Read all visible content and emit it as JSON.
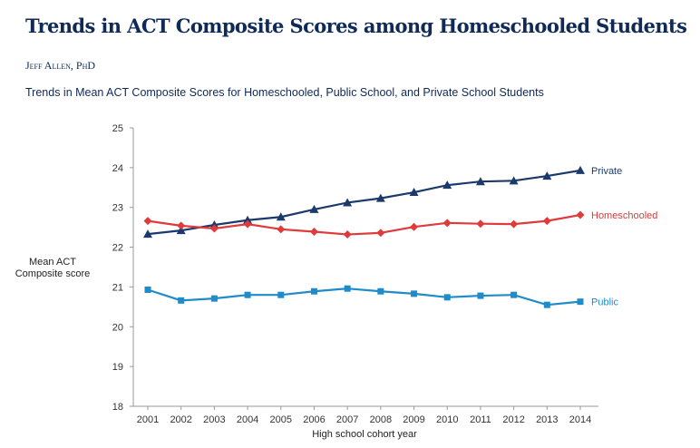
{
  "header": {
    "title": "Trends in ACT Composite Scores among  Homeschooled Students",
    "author": "Jeff Allen, PhD",
    "subtitle": "Trends in Mean ACT Composite Scores for Homeschooled, Public School, and Private School Students"
  },
  "chart_data": {
    "type": "line",
    "title": "Trends in Mean ACT Composite Scores for Homeschooled, Public School, and Private School Students",
    "xlabel": "High school cohort year",
    "ylabel_lines": [
      "Mean ACT",
      "Composite score"
    ],
    "ylim": [
      18,
      25
    ],
    "yticks": [
      "18",
      "19",
      "20",
      "21",
      "22",
      "23",
      "24",
      "25"
    ],
    "x": [
      "2001",
      "2002",
      "2003",
      "2004",
      "2005",
      "2006",
      "2007",
      "2008",
      "2009",
      "2010",
      "2011",
      "2012",
      "2013",
      "2014"
    ],
    "series": [
      {
        "name": "Private",
        "color": "#1b3a6b",
        "marker": "triangle",
        "values": [
          22.33,
          22.42,
          22.56,
          22.68,
          22.76,
          22.95,
          23.12,
          23.23,
          23.38,
          23.56,
          23.65,
          23.67,
          23.79,
          23.93
        ]
      },
      {
        "name": "Homeschooled",
        "color": "#e03a3a",
        "marker": "diamond",
        "values": [
          22.66,
          22.54,
          22.47,
          22.58,
          22.45,
          22.39,
          22.32,
          22.36,
          22.51,
          22.61,
          22.59,
          22.58,
          22.66,
          22.81
        ]
      },
      {
        "name": "Public",
        "color": "#1f8bc9",
        "marker": "square",
        "values": [
          20.93,
          20.66,
          20.71,
          20.8,
          20.8,
          20.89,
          20.96,
          20.89,
          20.83,
          20.74,
          20.78,
          20.8,
          20.55,
          20.63
        ]
      }
    ],
    "legend": "inline-right",
    "grid": false
  }
}
